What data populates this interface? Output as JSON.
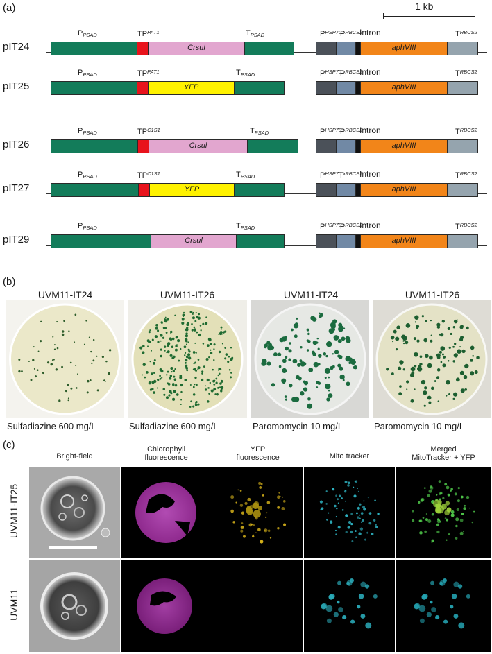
{
  "panel_a": {
    "letter": "(a)",
    "scale_label": "1 kb",
    "constructs": [
      {
        "name": "pIT24",
        "tp": "TP",
        "tp_sub": "PAT1",
        "insert": "Crsul",
        "tp_present": true,
        "insert_type": "crsul"
      },
      {
        "name": "pIT25",
        "tp": "TP",
        "tp_sub": "PAT1",
        "insert": "YFP",
        "tp_present": true,
        "insert_type": "yfp"
      },
      {
        "name": "pIT26",
        "tp": "TP",
        "tp_sub": "C1S1",
        "insert": "Crsul",
        "tp_present": true,
        "insert_type": "crsul"
      },
      {
        "name": "pIT27",
        "tp": "TP",
        "tp_sub": "C1S1",
        "insert": "YFP",
        "tp_present": true,
        "insert_type": "yfp"
      },
      {
        "name": "pIT29",
        "tp": "",
        "tp_sub": "",
        "insert": "Crsul",
        "tp_present": false,
        "insert_type": "crsul"
      }
    ],
    "labels": {
      "p_psad_main": "P",
      "p_psad_sub": "PSAD",
      "t_psad_main": "T",
      "t_psad_sub": "PSAD",
      "p_hsp70_main": "P",
      "p_hsp70_sub": "HSP70",
      "p_rbcs2_main": "P",
      "p_rbcs2_sub": "RBCS2",
      "intron": "Intron",
      "aph": "aphVIII",
      "t_rbcs2_main": "T",
      "t_rbcs2_sub": "RBCS2"
    },
    "colors": {
      "psad": "#137c5a",
      "tp": "#e8131c",
      "crsul": "#e2a6cf",
      "yfp": "#fff200",
      "hsp70": "#4b5159",
      "rbcs2": "#7189a5",
      "intron": "#111111",
      "aph": "#f28519",
      "trbcs2": "#95a4ae"
    }
  },
  "panel_b": {
    "letter": "(b)",
    "plates": [
      {
        "title": "UVM11-IT24",
        "condition": "Sulfadiazine 600 mg/L"
      },
      {
        "title": "UVM11-IT26",
        "condition": "Sulfadiazine 600 mg/L"
      },
      {
        "title": "UVM11-IT24",
        "condition": "Paromomycin 10 mg/L"
      },
      {
        "title": "UVM11-IT26",
        "condition": "Paromomycin 10 mg/L"
      }
    ]
  },
  "panel_c": {
    "letter": "(c)",
    "columns": [
      {
        "line1": "Bright-field",
        "line2": ""
      },
      {
        "line1": "Chlorophyll",
        "line2": "fluorescence"
      },
      {
        "line1": "YFP",
        "line2": "fluorescence"
      },
      {
        "line1": "Mito tracker",
        "line2": ""
      },
      {
        "line1": "Merged",
        "line2": "MitoTracker + YFP"
      }
    ],
    "rows": [
      "UVM11-IT25",
      "UVM11"
    ]
  }
}
